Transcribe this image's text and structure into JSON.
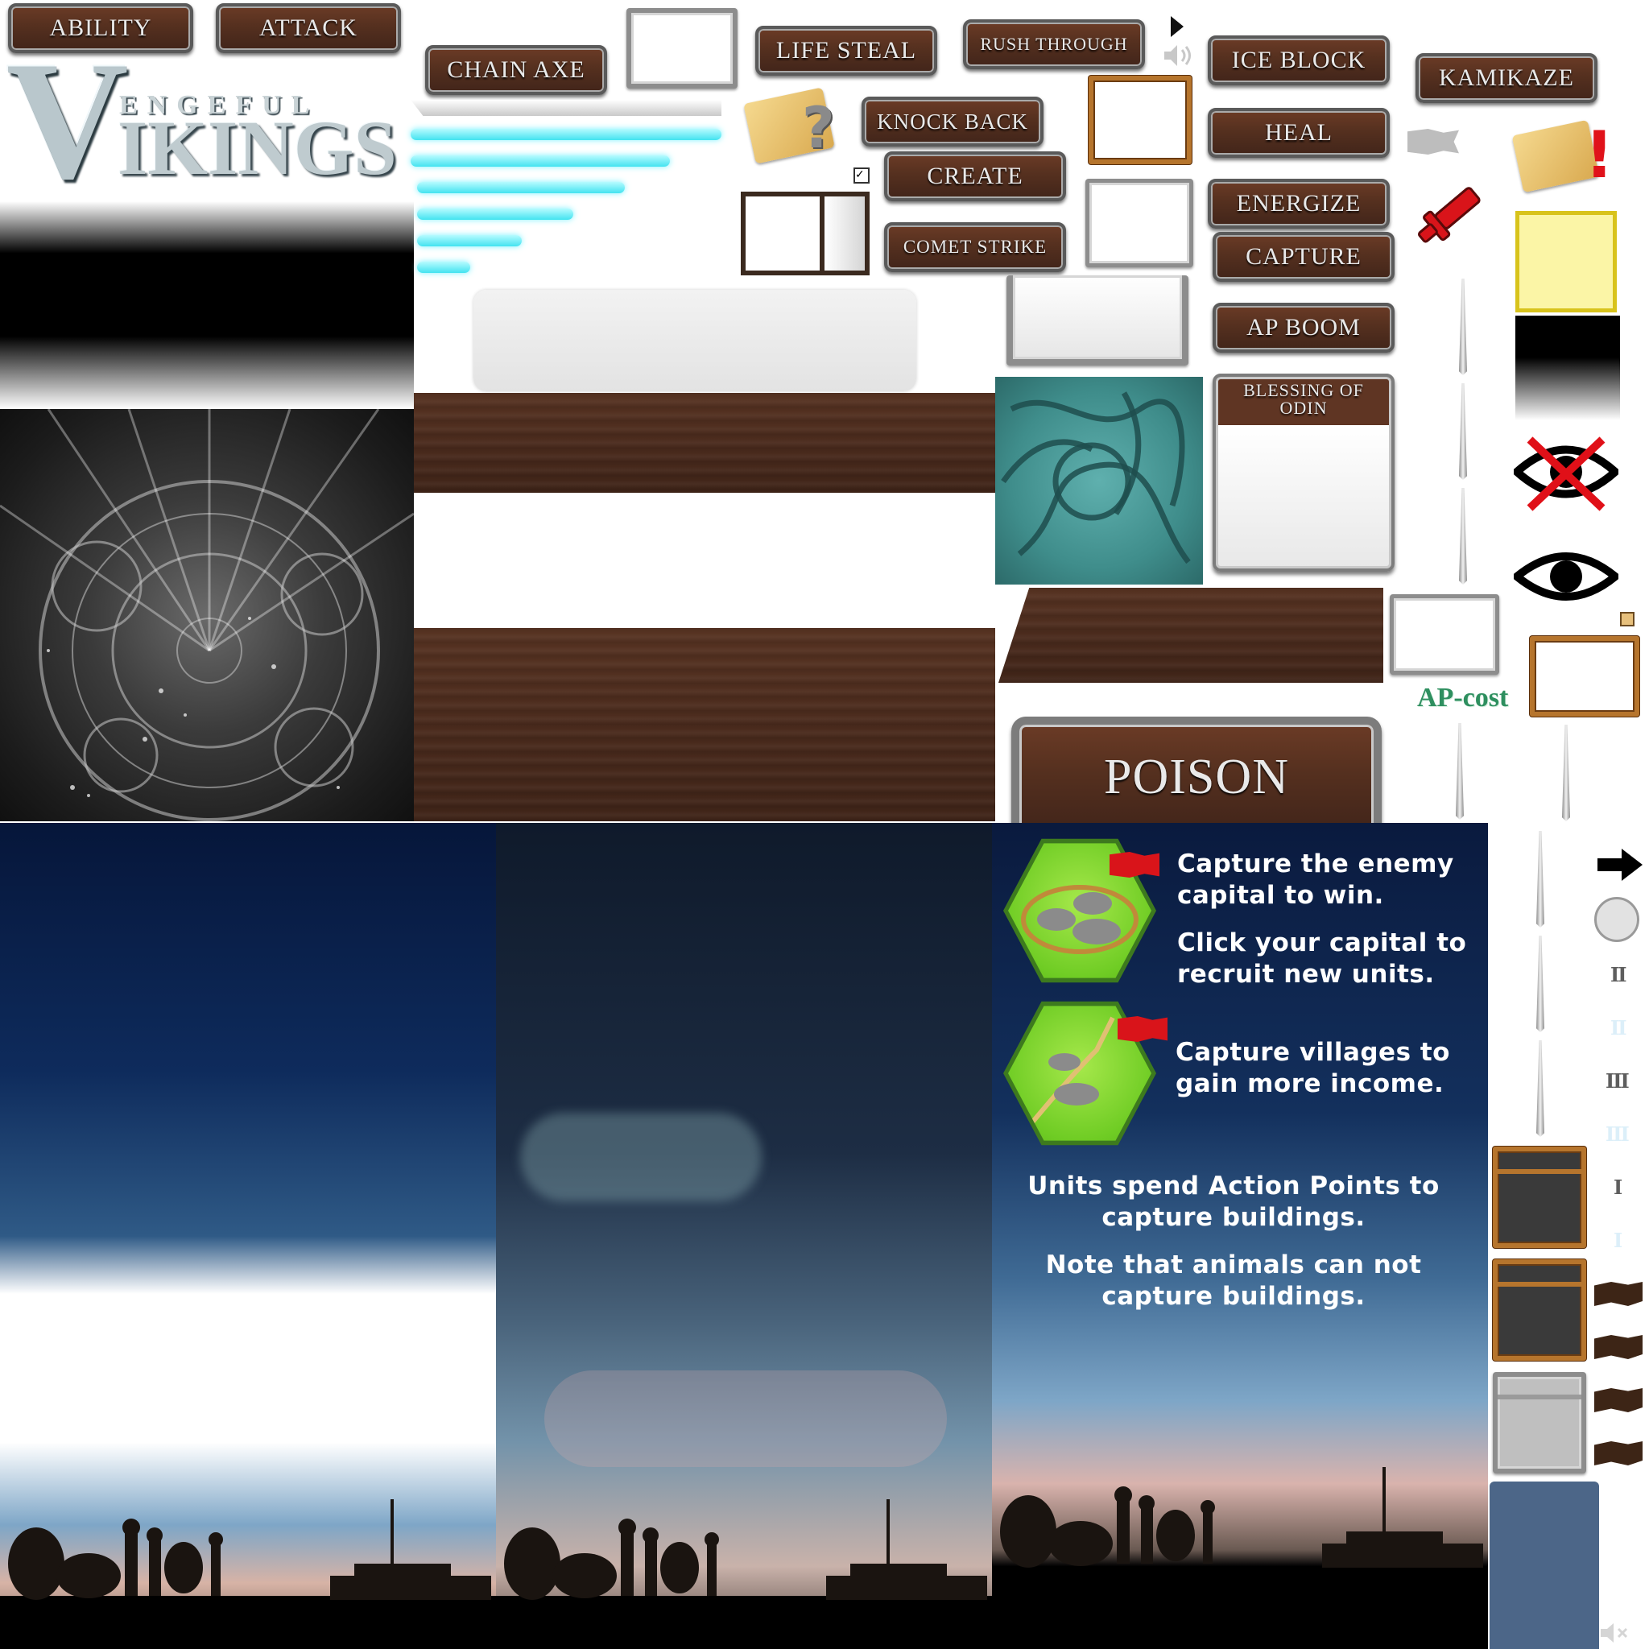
{
  "logo": {
    "big_v": "V",
    "top": "ENGEFUL",
    "bottom": "IKINGS"
  },
  "buttons": {
    "ability": "ABILITY",
    "attack": "ATTACK",
    "chain_axe": "CHAIN AXE",
    "life_steal": "LIFE STEAL",
    "rush_through": "RUSH THROUGH",
    "ice_block": "ICE BLOCK",
    "kamikaze": "KAMIKAZE",
    "knock_back": "KNOCK BACK",
    "create": "CREATE",
    "comet_strike": "COMET STRIKE",
    "heal": "HEAL",
    "energize": "ENERGIZE",
    "capture": "CAPTURE",
    "ap_boom": "AP BOOM",
    "blessing_of_odin": "BLESSING OF ODIN",
    "poison": "POISON"
  },
  "ap_cost_label": "AP-cost",
  "tutorial": {
    "hint_capital_1": "Capture the enemy capital to win.",
    "hint_capital_2": "Click your capital to recruit new units.",
    "hint_villages": "Capture villages to gain more income.",
    "hint_action_points": "Units spend Action Points to capture buildings.",
    "hint_animals": "Note that animals can not capture buildings."
  },
  "roman_numerals": {
    "n2": "II",
    "n3": "III",
    "n1": "I"
  },
  "icons": [
    "speaker-icon",
    "play-triangle-icon",
    "map-question-icon",
    "map-exclamation-icon",
    "sword-icon",
    "eye-crossed-icon",
    "eye-icon",
    "arrow-right-icon",
    "circle-icon",
    "mute-icon",
    "checkbox-icon",
    "flag-icon"
  ],
  "colors": {
    "wood": "#4b2b1d",
    "cyan_bar": "#43e3f0",
    "sky_top": "#0a1a3e",
    "red": "#d9141a",
    "gold": "#b6752d",
    "ap_green": "#2e8f5f"
  }
}
